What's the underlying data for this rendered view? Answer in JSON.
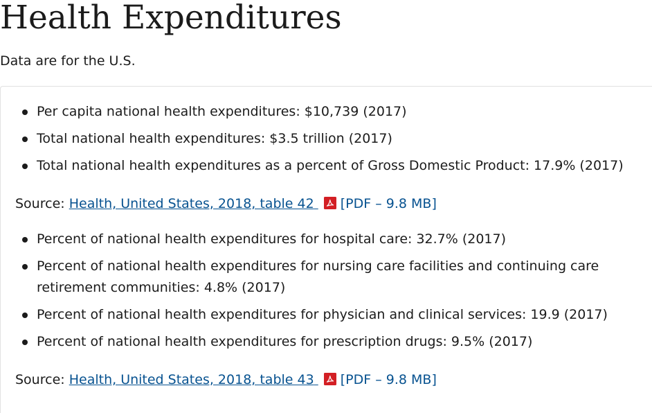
{
  "page": {
    "title": "Health Expenditures",
    "intro": "Data are for the U.S."
  },
  "section1": {
    "items": [
      "Per capita national health expenditures: $10,739 (2017)",
      "Total national health expenditures: $3.5 trillion (2017)",
      "Total national health expenditures as a percent of Gross Domestic Product: 17.9% (2017)"
    ],
    "source_prefix": "Source:",
    "source_link": "Health, United States, 2018, table 42",
    "source_size": "[PDF – 9.8 MB]"
  },
  "section2": {
    "items": [
      "Percent of national health expenditures for hospital care: 32.7% (2017)",
      "Percent of national health expenditures for nursing care facilities and continuing care retirement communities: 4.8% (2017)",
      "Percent of national health expenditures for physician and clinical services: 19.9 (2017)",
      "Percent of national health expenditures for prescription drugs: 9.5% (2017)"
    ],
    "source_prefix": "Source:",
    "source_link": "Health, United States, 2018, table 43",
    "source_size": "[PDF – 9.8 MB]"
  },
  "colors": {
    "text": "#1b1b1b",
    "link": "#075290",
    "pdf_icon": "#d31f24",
    "border": "#e1e1e1"
  },
  "icons": {
    "pdf": "pdf-file-icon"
  }
}
